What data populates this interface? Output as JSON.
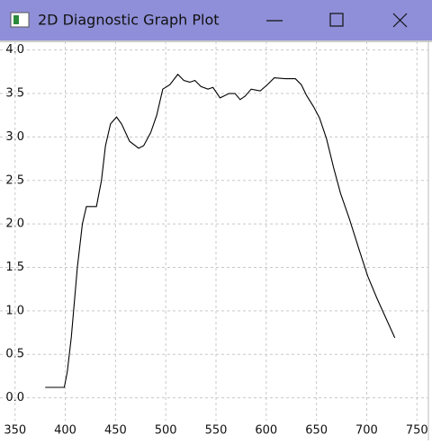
{
  "window": {
    "title": "2D Diagnostic Graph Plot"
  },
  "chart_data": {
    "type": "line",
    "x": [
      380,
      399,
      402,
      406,
      412,
      417,
      421,
      428,
      431,
      436,
      440,
      445,
      451,
      456,
      464,
      473,
      478,
      485,
      491,
      497,
      504,
      512,
      518,
      524,
      529,
      535,
      542,
      547,
      554,
      563,
      569,
      574,
      579,
      585,
      594,
      601,
      608,
      619,
      629,
      635,
      640,
      647,
      653,
      660,
      667,
      674,
      683,
      692,
      701,
      710,
      719,
      728
    ],
    "series": [
      {
        "color": "#000000",
        "values": [
          0.12,
          0.12,
          0.3,
          0.7,
          1.5,
          2.0,
          2.2,
          2.2,
          2.2,
          2.5,
          2.9,
          3.15,
          3.23,
          3.15,
          2.95,
          2.87,
          2.9,
          3.05,
          3.25,
          3.55,
          3.6,
          3.72,
          3.65,
          3.63,
          3.65,
          3.58,
          3.55,
          3.57,
          3.45,
          3.5,
          3.5,
          3.43,
          3.47,
          3.55,
          3.53,
          3.6,
          3.68,
          3.67,
          3.67,
          3.6,
          3.48,
          3.35,
          3.22,
          2.98,
          2.65,
          2.35,
          2.05,
          1.72,
          1.4,
          1.15,
          0.92,
          0.69
        ]
      }
    ],
    "xlim": [
      335,
      765
    ],
    "ylim": [
      -0.49,
      4.1
    ],
    "xticks": [
      350,
      400,
      450,
      500,
      550,
      600,
      650,
      700,
      750
    ],
    "yticks": [
      {
        "value": 0,
        "label": "0.0"
      },
      0.5,
      {
        "value": 1,
        "label": "1.0"
      },
      1.5,
      {
        "value": 2,
        "label": "2.0"
      },
      2.5,
      {
        "value": 3,
        "label": "3.0"
      },
      3.5,
      {
        "value": 4,
        "label": "4.0"
      }
    ],
    "grid": true
  }
}
